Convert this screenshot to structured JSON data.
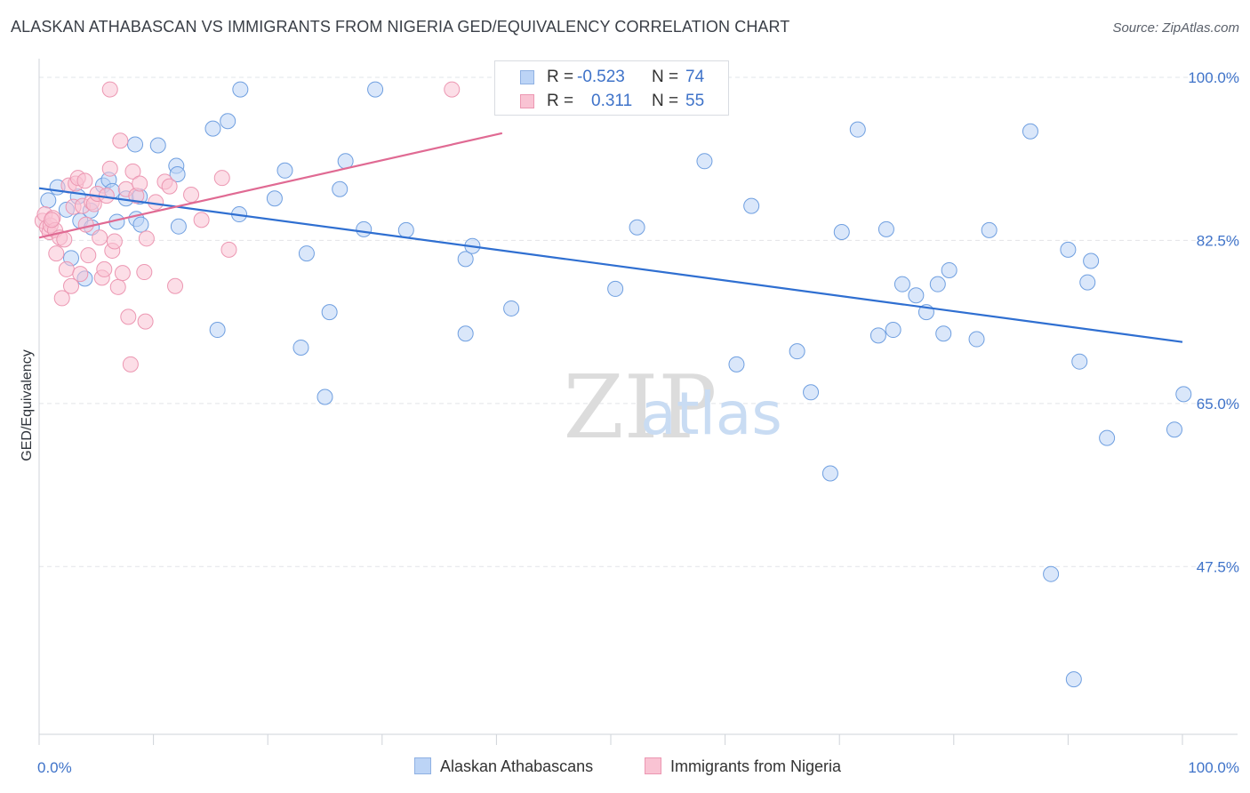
{
  "header": {
    "title": "ALASKAN ATHABASCAN VS IMMIGRANTS FROM NIGERIA GED/EQUIVALENCY CORRELATION CHART",
    "source": "Source: ZipAtlas.com"
  },
  "watermark": {
    "zip": "ZIP",
    "atlas": "atlas"
  },
  "legend": {
    "rows": [
      {
        "r_label": "R =",
        "r_value": "-0.523",
        "n_label": "N =",
        "n_value": "74",
        "color": "#bcd4f6"
      },
      {
        "r_label": "R =",
        "r_value": "0.311",
        "n_label": "N =",
        "n_value": "55",
        "color": "#f9c3d3"
      }
    ]
  },
  "chart_data": {
    "type": "scatter",
    "title": "ALASKAN ATHABASCAN VS IMMIGRANTS FROM NIGERIA GED/EQUIVALENCY CORRELATION CHART",
    "xlabel": "",
    "ylabel": "GED/Equivalency",
    "xlim": [
      0,
      100
    ],
    "ylim": [
      29.5,
      102
    ],
    "x_tick_labels": [
      "0.0%",
      "100.0%"
    ],
    "y_ticks": [
      47.5,
      65.0,
      82.5,
      100.0
    ],
    "y_tick_labels": [
      "47.5%",
      "65.0%",
      "82.5%",
      "100.0%"
    ],
    "grid": "horizontal dashed",
    "legend_position": "top-center",
    "series": [
      {
        "name": "Alaskan Athabascans",
        "color": "#6f9fe0",
        "fill": "#bcd4f6",
        "trend": {
          "x": [
            0,
            100
          ],
          "y": [
            88.1,
            71.6
          ]
        },
        "points": [
          [
            0.8,
            86.8
          ],
          [
            1.6,
            88.2
          ],
          [
            2.4,
            85.8
          ],
          [
            3.4,
            87.2
          ],
          [
            2.8,
            80.6
          ],
          [
            3.6,
            84.6
          ],
          [
            4.0,
            78.4
          ],
          [
            4.6,
            83.9
          ],
          [
            5.6,
            88.4
          ],
          [
            6.1,
            89.0
          ],
          [
            6.4,
            87.8
          ],
          [
            7.6,
            87.0
          ],
          [
            8.5,
            84.8
          ],
          [
            8.8,
            87.2
          ],
          [
            8.4,
            92.8
          ],
          [
            10.4,
            92.7
          ],
          [
            12.0,
            90.5
          ],
          [
            12.1,
            89.6
          ],
          [
            12.2,
            84.0
          ],
          [
            15.2,
            94.5
          ],
          [
            16.5,
            95.3
          ],
          [
            17.5,
            85.3
          ],
          [
            17.6,
            98.7
          ],
          [
            15.6,
            72.9
          ],
          [
            21.5,
            90.0
          ],
          [
            20.6,
            87.0
          ],
          [
            22.9,
            71.0
          ],
          [
            23.4,
            81.1
          ],
          [
            25.4,
            74.8
          ],
          [
            25.0,
            65.7
          ],
          [
            26.3,
            88.0
          ],
          [
            26.8,
            91.0
          ],
          [
            28.4,
            83.7
          ],
          [
            29.4,
            98.7
          ],
          [
            32.1,
            83.6
          ],
          [
            37.3,
            80.5
          ],
          [
            37.9,
            81.9
          ],
          [
            37.3,
            72.5
          ],
          [
            41.3,
            75.2
          ],
          [
            50.4,
            77.3
          ],
          [
            53.3,
            98.7
          ],
          [
            52.3,
            83.9
          ],
          [
            58.2,
            91.0
          ],
          [
            62.3,
            86.2
          ],
          [
            61.0,
            69.2
          ],
          [
            66.3,
            70.6
          ],
          [
            67.5,
            66.2
          ],
          [
            70.2,
            83.4
          ],
          [
            71.6,
            94.4
          ],
          [
            69.2,
            57.5
          ],
          [
            73.4,
            72.3
          ],
          [
            74.1,
            83.7
          ],
          [
            74.7,
            72.9
          ],
          [
            75.5,
            77.8
          ],
          [
            76.7,
            76.6
          ],
          [
            77.6,
            74.8
          ],
          [
            78.6,
            77.8
          ],
          [
            79.1,
            72.5
          ],
          [
            79.6,
            79.3
          ],
          [
            82.0,
            71.9
          ],
          [
            83.1,
            83.6
          ],
          [
            86.7,
            94.2
          ],
          [
            88.5,
            46.7
          ],
          [
            90.0,
            81.5
          ],
          [
            90.5,
            35.4
          ],
          [
            91.0,
            69.5
          ],
          [
            91.7,
            78.0
          ],
          [
            92.0,
            80.3
          ],
          [
            93.4,
            61.3
          ],
          [
            99.3,
            62.2
          ],
          [
            100.1,
            66.0
          ],
          [
            8.9,
            84.2
          ],
          [
            4.5,
            85.7
          ],
          [
            6.8,
            84.5
          ]
        ]
      },
      {
        "name": "Immigrants from Nigeria",
        "color": "#ec97b2",
        "fill": "#f9c3d3",
        "trend": {
          "x": [
            0,
            40.5
          ],
          "y": [
            82.8,
            94.0
          ]
        },
        "points": [
          [
            0.3,
            84.6
          ],
          [
            0.5,
            85.3
          ],
          [
            0.7,
            83.9
          ],
          [
            0.9,
            83.4
          ],
          [
            1.0,
            84.1
          ],
          [
            1.2,
            84.9
          ],
          [
            1.4,
            83.6
          ],
          [
            1.5,
            81.1
          ],
          [
            1.8,
            82.8
          ],
          [
            2.0,
            76.3
          ],
          [
            2.2,
            82.6
          ],
          [
            2.4,
            79.4
          ],
          [
            2.6,
            88.4
          ],
          [
            2.8,
            77.6
          ],
          [
            3.0,
            86.1
          ],
          [
            3.2,
            88.6
          ],
          [
            3.4,
            89.2
          ],
          [
            3.6,
            78.9
          ],
          [
            3.8,
            86.2
          ],
          [
            4.0,
            88.9
          ],
          [
            4.1,
            84.2
          ],
          [
            4.3,
            80.9
          ],
          [
            4.6,
            86.6
          ],
          [
            4.8,
            86.4
          ],
          [
            5.1,
            87.5
          ],
          [
            5.3,
            82.8
          ],
          [
            5.5,
            78.5
          ],
          [
            5.7,
            79.4
          ],
          [
            5.9,
            87.3
          ],
          [
            6.2,
            90.2
          ],
          [
            6.4,
            81.4
          ],
          [
            6.6,
            82.4
          ],
          [
            6.9,
            77.5
          ],
          [
            7.1,
            93.2
          ],
          [
            7.3,
            79.0
          ],
          [
            7.6,
            88.0
          ],
          [
            7.8,
            74.3
          ],
          [
            8.0,
            69.2
          ],
          [
            8.2,
            89.9
          ],
          [
            8.5,
            87.3
          ],
          [
            8.8,
            88.6
          ],
          [
            9.2,
            79.1
          ],
          [
            9.3,
            73.8
          ],
          [
            9.4,
            82.7
          ],
          [
            10.2,
            86.6
          ],
          [
            11.0,
            88.8
          ],
          [
            11.4,
            88.3
          ],
          [
            11.9,
            77.6
          ],
          [
            13.3,
            87.4
          ],
          [
            14.2,
            84.7
          ],
          [
            16.6,
            81.5
          ],
          [
            16.0,
            89.2
          ],
          [
            6.2,
            98.7
          ],
          [
            36.1,
            98.7
          ],
          [
            1.1,
            84.7
          ]
        ]
      }
    ]
  },
  "bottom_legend": {
    "items": [
      {
        "label": "Alaskan Athabascans",
        "color": "#bcd4f6"
      },
      {
        "label": "Immigrants from Nigeria",
        "color": "#f9c3d3"
      }
    ]
  }
}
